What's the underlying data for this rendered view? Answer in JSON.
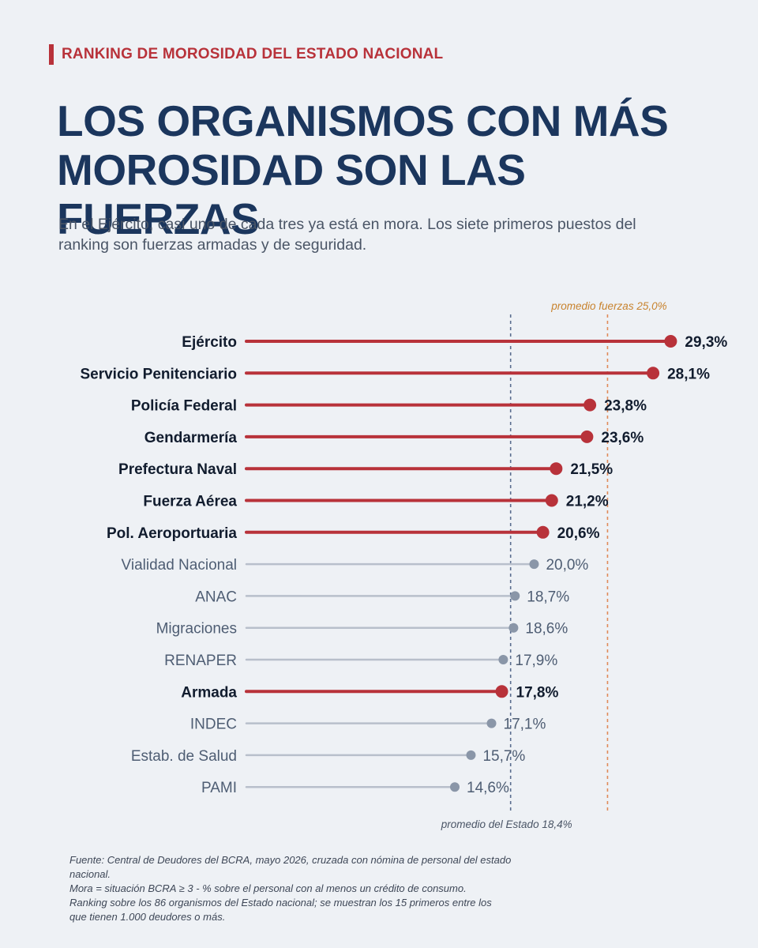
{
  "header": {
    "kicker": "RANKING DE MOROSIDAD DEL ESTADO NACIONAL",
    "title": "LOS ORGANISMOS CON MÁS MOROSIDAD SON LAS FUERZAS",
    "subtitle": "En el Ejército, casi uno de cada tres ya está en mora. Los siete primeros puestos del ranking son fuerzas armadas y de seguridad."
  },
  "chart_data": {
    "type": "lollipop",
    "unit": "%",
    "categories": [
      "Ejército",
      "Servicio Penitenciario",
      "Policía Federal",
      "Gendarmería",
      "Prefectura Naval",
      "Fuerza Aérea",
      "Pol. Aeroportuaria",
      "Vialidad Nacional",
      "ANAC",
      "Migraciones",
      "RENAPER",
      "Armada",
      "INDEC",
      "Estab. de Salud",
      "PAMI"
    ],
    "values": [
      29.3,
      28.1,
      23.8,
      23.6,
      21.5,
      21.2,
      20.6,
      20.0,
      18.7,
      18.6,
      17.9,
      17.8,
      17.1,
      15.7,
      14.6
    ],
    "value_labels": [
      "29,3%",
      "28,1%",
      "23,8%",
      "23,6%",
      "21,5%",
      "21,2%",
      "20,6%",
      "20,0%",
      "18,7%",
      "18,6%",
      "17,9%",
      "17,8%",
      "17,1%",
      "15,7%",
      "14,6%"
    ],
    "highlighted": [
      true,
      true,
      true,
      true,
      true,
      true,
      true,
      false,
      false,
      false,
      false,
      true,
      false,
      false,
      false
    ],
    "reference_lines": [
      {
        "value": 18.4,
        "label": "promedio del Estado 18,4%",
        "color": "#5a6d8f",
        "label_position": "bottom"
      },
      {
        "value": 25.0,
        "label": "promedio fuerzas 25,0%",
        "color": "#e08a5a",
        "label_position": "top"
      }
    ],
    "colors": {
      "highlight": "#b8323a",
      "other": "#b8bfcb",
      "other_dot": "#8a96a8",
      "highlight_text": "#111c2e",
      "other_text": "#4e5d73",
      "ref_label_top": "#c8832e",
      "ref_label_bottom": "#4a5566"
    },
    "grid": false,
    "legend": "none"
  },
  "footnotes": [
    "Fuente: Central de Deudores del BCRA, mayo 2026, cruzada con nómina de personal del estado nacional.",
    "Mora = situación BCRA ≥ 3 - % sobre el personal con al menos un crédito de consumo.",
    "Ranking sobre los 86 organismos del Estado nacional; se muestran los 15 primeros entre los que tienen 1.000 deudores o más."
  ]
}
